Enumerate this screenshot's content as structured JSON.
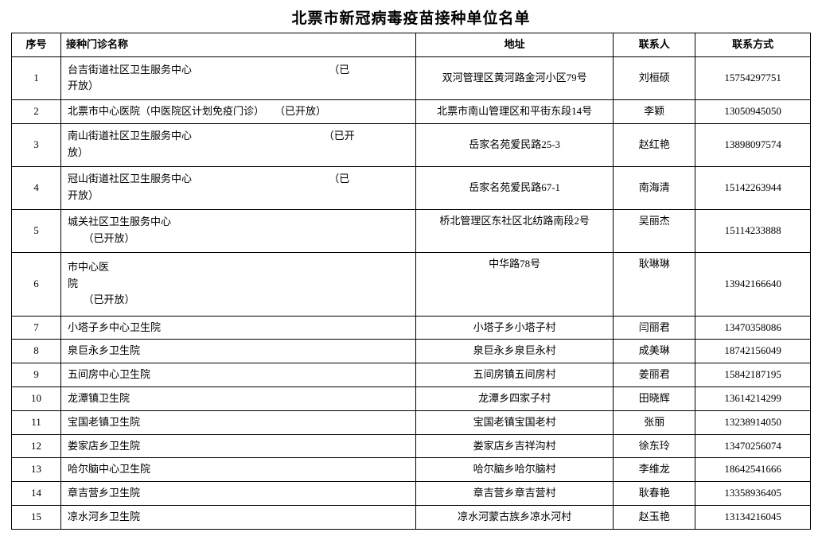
{
  "title": "北票市新冠病毒疫苗接种单位名单",
  "columns": [
    "序号",
    "接种门诊名称",
    "地址",
    "联系人",
    "联系方式"
  ],
  "rows": [
    {
      "seq": "1",
      "name_lines": [
        "台吉街道社区卫生服务中心                                                     （已",
        "开放）"
      ],
      "addr": "双河管理区黄河路金河小区79号",
      "person": "刘桓硕",
      "phone": "15754297751",
      "h": "tall1",
      "addr_top": false
    },
    {
      "seq": "2",
      "name_lines": [
        "北票市中心医院（中医院区计划免疫门诊）    （已开放）"
      ],
      "addr": "北票市南山管理区和平街东段14号",
      "person": "李颖",
      "phone": "13050945050",
      "h": "",
      "addr_top": false
    },
    {
      "seq": "3",
      "name_lines": [
        "南山街道社区卫生服务中心                                                   （已开",
        "放）"
      ],
      "addr": "岳家名苑爱民路25-3",
      "person": "赵红艳",
      "phone": "13898097574",
      "h": "tall1",
      "addr_top": false
    },
    {
      "seq": "4",
      "name_lines": [
        "冠山街道社区卫生服务中心                                                     （已",
        "开放）"
      ],
      "addr": "岳家名苑爱民路67-1",
      "person": "南海清",
      "phone": "15142263944",
      "h": "tall1",
      "addr_top": false
    },
    {
      "seq": "5",
      "name_lines": [
        "城关社区卫生服务中心",
        "      （已开放）"
      ],
      "addr": "桥北管理区东社区北纺路南段2号",
      "person": "吴丽杰",
      "phone": "15114233888",
      "h": "tall1",
      "addr_top": true
    },
    {
      "seq": "6",
      "name_lines": [
        "市中心医",
        "院",
        "      （已开放）"
      ],
      "addr": "中华路78号",
      "person": "耿琳琳",
      "phone": "13942166640",
      "h": "tall2",
      "addr_top": true
    },
    {
      "seq": "7",
      "name_lines": [
        "小塔子乡中心卫生院"
      ],
      "addr": "小塔子乡小塔子村",
      "person": "闫丽君",
      "phone": "13470358086",
      "h": "",
      "addr_top": false
    },
    {
      "seq": "8",
      "name_lines": [
        "泉巨永乡卫生院"
      ],
      "addr": "泉巨永乡泉巨永村",
      "person": "成美琳",
      "phone": "18742156049",
      "h": "",
      "addr_top": false
    },
    {
      "seq": "9",
      "name_lines": [
        "五间房中心卫生院"
      ],
      "addr": "五间房镇五间房村",
      "person": "姜丽君",
      "phone": "15842187195",
      "h": "",
      "addr_top": false
    },
    {
      "seq": "10",
      "name_lines": [
        "龙潭镇卫生院"
      ],
      "addr": "龙潭乡四家子村",
      "person": "田晓辉",
      "phone": "13614214299",
      "h": "",
      "addr_top": false
    },
    {
      "seq": "11",
      "name_lines": [
        "宝国老镇卫生院"
      ],
      "addr": "宝国老镇宝国老村",
      "person": "张丽",
      "phone": "13238914050",
      "h": "",
      "addr_top": false
    },
    {
      "seq": "12",
      "name_lines": [
        "娄家店乡卫生院"
      ],
      "addr": "娄家店乡吉祥沟村",
      "person": "徐东玲",
      "phone": "13470256074",
      "h": "",
      "addr_top": false
    },
    {
      "seq": "13",
      "name_lines": [
        "哈尔脑中心卫生院"
      ],
      "addr": "哈尔脑乡哈尔脑村",
      "person": "李维龙",
      "phone": "18642541666",
      "h": "",
      "addr_top": false
    },
    {
      "seq": "14",
      "name_lines": [
        "章吉营乡卫生院"
      ],
      "addr": "章吉营乡章吉营村",
      "person": "耿春艳",
      "phone": "13358936405",
      "h": "",
      "addr_top": false
    },
    {
      "seq": "15",
      "name_lines": [
        "凉水河乡卫生院"
      ],
      "addr": "凉水河蒙古族乡凉水河村",
      "person": "赵玉艳",
      "phone": "13134216045",
      "h": "",
      "addr_top": false
    }
  ]
}
